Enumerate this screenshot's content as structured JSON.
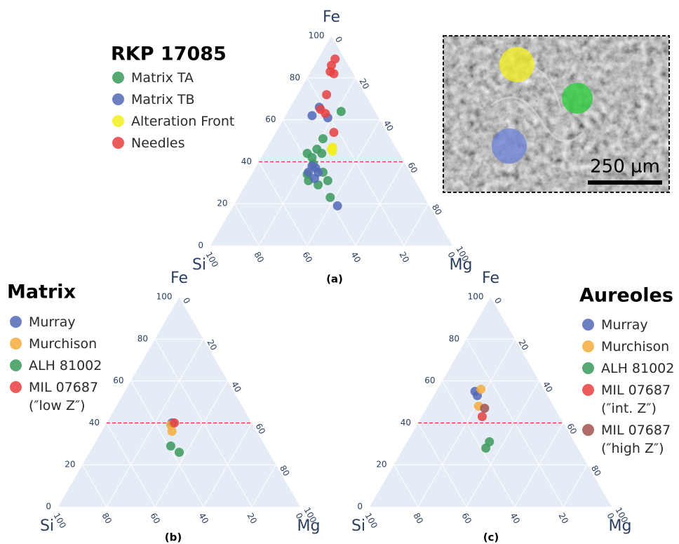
{
  "chart_data": [
    {
      "type": "ternary",
      "title": "RKP 17085",
      "panel_label": "(a)",
      "range": [
        0,
        100
      ],
      "ticks": [
        0,
        20,
        40,
        60,
        80,
        100
      ],
      "axes": {
        "fe": "Fe",
        "si": "Si",
        "mg": "Mg"
      },
      "reference_fe": 40,
      "reference_color": "#e8332e",
      "series": [
        {
          "name": "Matrix TA",
          "color": "#3a9a5c",
          "fe": [
            64,
            51,
            46,
            44,
            44,
            42,
            39,
            35,
            34,
            31,
            31,
            29,
            23
          ],
          "mg": [
            22,
            21,
            21,
            18,
            24,
            21,
            23,
            29,
            23,
            25,
            33,
            30,
            38
          ],
          "si": [
            14,
            28,
            33,
            38,
            32,
            37,
            38,
            36,
            43,
            44,
            36,
            41,
            39
          ]
        },
        {
          "name": "Matrix TB",
          "color": "#5468b8",
          "fe": [
            66,
            62,
            61,
            38,
            37,
            35,
            35,
            32,
            19
          ],
          "mg": [
            12,
            11,
            18,
            23,
            25,
            23,
            27,
            27,
            43
          ],
          "si": [
            22,
            27,
            21,
            39,
            38,
            42,
            38,
            41,
            38
          ]
        },
        {
          "name": "Alteration Front",
          "color": "#f2ef1c",
          "fe": [
            47,
            46,
            45
          ],
          "mg": [
            27,
            27,
            28
          ],
          "si": [
            26,
            27,
            27
          ]
        },
        {
          "name": "Needles",
          "color": "#e8413f",
          "fe": [
            89,
            86,
            83,
            82,
            72,
            65,
            63,
            54
          ],
          "mg": [
            7,
            7,
            8,
            10,
            12,
            13,
            16,
            24
          ],
          "si": [
            4,
            7,
            9,
            8,
            16,
            22,
            21,
            22
          ]
        }
      ]
    },
    {
      "type": "ternary",
      "title": "Matrix",
      "panel_label": "(b)",
      "range": [
        0,
        100
      ],
      "ticks": [
        0,
        20,
        40,
        60,
        80,
        100
      ],
      "axes": {
        "fe": "Fe",
        "si": "Si",
        "mg": "Mg"
      },
      "reference_fe": 40,
      "reference_color": "#e8332e",
      "series": [
        {
          "name": "Murray",
          "color": "#5468b8",
          "fe": [
            40
          ],
          "mg": [
            27
          ],
          "si": [
            33
          ]
        },
        {
          "name": "Murchison",
          "color": "#f5ac3c",
          "fe": [
            39,
            36
          ],
          "mg": [
            27,
            29
          ],
          "si": [
            34,
            35
          ]
        },
        {
          "name": "ALH 81002",
          "color": "#3a9a5c",
          "fe": [
            29,
            26
          ],
          "mg": [
            32,
            37
          ],
          "si": [
            39,
            37
          ]
        },
        {
          "name": "MIL 07687\n(″low Z″)",
          "color": "#e8413f",
          "fe": [
            40
          ],
          "mg": [
            28
          ],
          "si": [
            32
          ]
        }
      ]
    },
    {
      "type": "ternary",
      "title": "Aureoles",
      "panel_label": "(c)",
      "range": [
        0,
        100
      ],
      "ticks": [
        0,
        20,
        40,
        60,
        80,
        100
      ],
      "axes": {
        "fe": "Fe",
        "si": "Si",
        "mg": "Mg"
      },
      "reference_fe": 40,
      "reference_color": "#e8332e",
      "series": [
        {
          "name": "Murray",
          "color": "#5468b8",
          "fe": [
            55,
            53
          ],
          "mg": [
            16,
            18
          ],
          "si": [
            29,
            29
          ]
        },
        {
          "name": "Murchison",
          "color": "#f5ac3c",
          "fe": [
            56,
            48
          ],
          "mg": [
            18,
            21
          ],
          "si": [
            26,
            31
          ]
        },
        {
          "name": "ALH 81002",
          "color": "#3a9a5c",
          "fe": [
            31,
            28
          ],
          "mg": [
            34,
            34
          ],
          "si": [
            35,
            38
          ]
        },
        {
          "name": "MIL 07687\n(″int. Z″)",
          "color": "#e8413f",
          "fe": [
            43
          ],
          "mg": [
            25
          ],
          "si": [
            32
          ]
        },
        {
          "name": "MIL 07687\n(″high Z″)",
          "color": "#a3524c",
          "fe": [
            47
          ],
          "mg": [
            24
          ],
          "si": [
            29
          ]
        }
      ]
    }
  ],
  "inset": {
    "scale_label": "250 µm"
  }
}
